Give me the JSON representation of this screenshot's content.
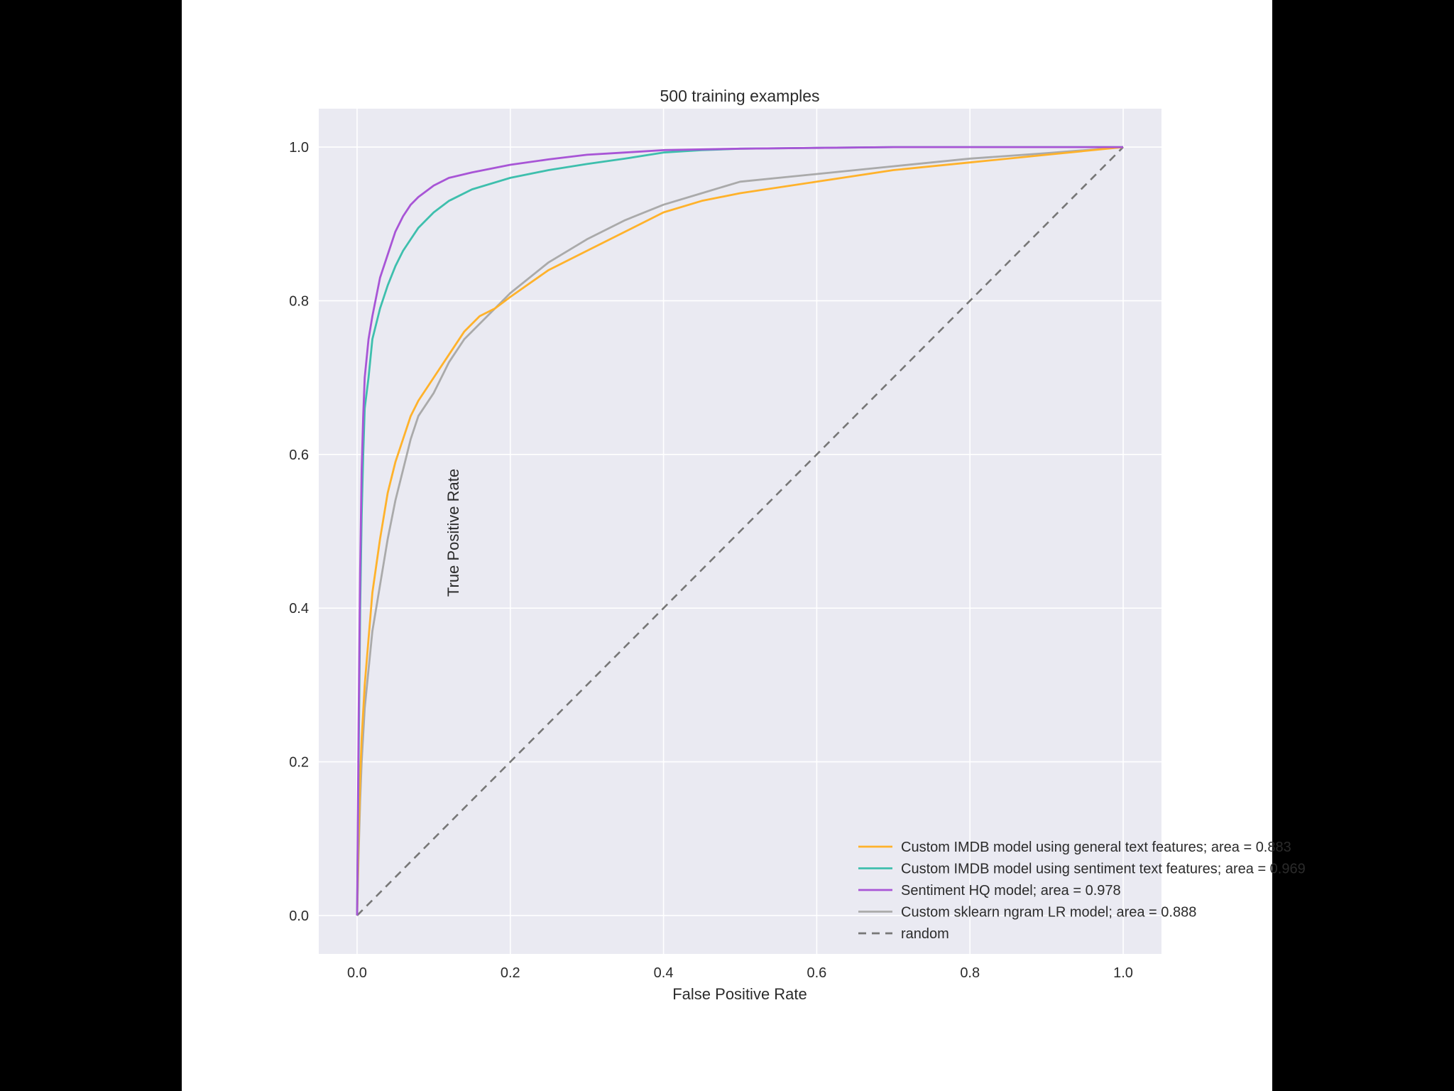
{
  "chart_data": {
    "type": "line",
    "title": "500 training examples",
    "xlabel": "False Positive Rate",
    "ylabel": "True Positive Rate",
    "xlim": [
      -0.05,
      1.05
    ],
    "ylim": [
      -0.05,
      1.05
    ],
    "xticks": [
      0.0,
      0.2,
      0.4,
      0.6,
      0.8,
      1.0
    ],
    "yticks": [
      0.0,
      0.2,
      0.4,
      0.6,
      0.8,
      1.0
    ],
    "xtick_labels": [
      "0.0",
      "0.2",
      "0.4",
      "0.6",
      "0.8",
      "1.0"
    ],
    "ytick_labels": [
      "0.0",
      "0.2",
      "0.4",
      "0.6",
      "0.8",
      "1.0"
    ],
    "grid": true,
    "legend_position": "lower-right",
    "background_color": "#eaeaf2",
    "series": [
      {
        "name": "Custom IMDB model using general text features; area = 0.883",
        "color": "#ffb22b",
        "x": [
          0.0,
          0.002,
          0.004,
          0.006,
          0.01,
          0.015,
          0.02,
          0.03,
          0.04,
          0.05,
          0.06,
          0.07,
          0.08,
          0.1,
          0.12,
          0.14,
          0.16,
          0.18,
          0.2,
          0.25,
          0.3,
          0.35,
          0.4,
          0.45,
          0.5,
          0.6,
          0.7,
          0.8,
          0.9,
          1.0
        ],
        "y": [
          0.0,
          0.1,
          0.18,
          0.23,
          0.3,
          0.36,
          0.42,
          0.49,
          0.55,
          0.59,
          0.62,
          0.65,
          0.67,
          0.7,
          0.73,
          0.76,
          0.78,
          0.79,
          0.805,
          0.84,
          0.865,
          0.89,
          0.915,
          0.93,
          0.94,
          0.955,
          0.97,
          0.98,
          0.99,
          1.0
        ]
      },
      {
        "name": "Custom IMDB model using sentiment text features; area = 0.969",
        "color": "#3ebfad",
        "x": [
          0.0,
          0.002,
          0.004,
          0.006,
          0.008,
          0.01,
          0.015,
          0.02,
          0.03,
          0.04,
          0.05,
          0.06,
          0.07,
          0.08,
          0.1,
          0.12,
          0.15,
          0.2,
          0.25,
          0.3,
          0.35,
          0.4,
          0.45,
          0.5,
          0.6,
          0.7,
          0.8,
          0.9,
          1.0
        ],
        "y": [
          0.0,
          0.2,
          0.4,
          0.52,
          0.6,
          0.66,
          0.7,
          0.75,
          0.79,
          0.82,
          0.845,
          0.865,
          0.88,
          0.895,
          0.915,
          0.93,
          0.945,
          0.96,
          0.97,
          0.978,
          0.985,
          0.993,
          0.996,
          0.998,
          0.999,
          1.0,
          1.0,
          1.0,
          1.0
        ]
      },
      {
        "name": "Sentiment HQ model; area = 0.978",
        "color": "#a855d6",
        "x": [
          0.0,
          0.002,
          0.004,
          0.006,
          0.008,
          0.01,
          0.015,
          0.02,
          0.03,
          0.04,
          0.05,
          0.06,
          0.07,
          0.08,
          0.1,
          0.12,
          0.15,
          0.2,
          0.25,
          0.3,
          0.35,
          0.4,
          0.5,
          0.6,
          0.7,
          0.8,
          0.9,
          1.0
        ],
        "y": [
          0.0,
          0.25,
          0.45,
          0.58,
          0.65,
          0.7,
          0.75,
          0.78,
          0.83,
          0.86,
          0.89,
          0.91,
          0.925,
          0.935,
          0.95,
          0.96,
          0.967,
          0.977,
          0.984,
          0.99,
          0.993,
          0.996,
          0.998,
          0.999,
          1.0,
          1.0,
          1.0,
          1.0
        ]
      },
      {
        "name": "Custom sklearn ngram LR model; area = 0.888",
        "color": "#aaaaaa",
        "x": [
          0.0,
          0.002,
          0.004,
          0.006,
          0.01,
          0.015,
          0.02,
          0.03,
          0.04,
          0.05,
          0.06,
          0.07,
          0.08,
          0.1,
          0.12,
          0.14,
          0.16,
          0.18,
          0.2,
          0.25,
          0.3,
          0.35,
          0.4,
          0.45,
          0.5,
          0.6,
          0.7,
          0.8,
          0.9,
          1.0
        ],
        "y": [
          0.0,
          0.08,
          0.15,
          0.2,
          0.27,
          0.32,
          0.37,
          0.43,
          0.49,
          0.54,
          0.58,
          0.62,
          0.65,
          0.68,
          0.72,
          0.75,
          0.77,
          0.79,
          0.81,
          0.85,
          0.88,
          0.905,
          0.925,
          0.94,
          0.955,
          0.965,
          0.975,
          0.985,
          0.992,
          1.0
        ]
      },
      {
        "name": "random",
        "color": "#777777",
        "dashed": true,
        "x": [
          0.0,
          1.0
        ],
        "y": [
          0.0,
          1.0
        ]
      }
    ]
  }
}
